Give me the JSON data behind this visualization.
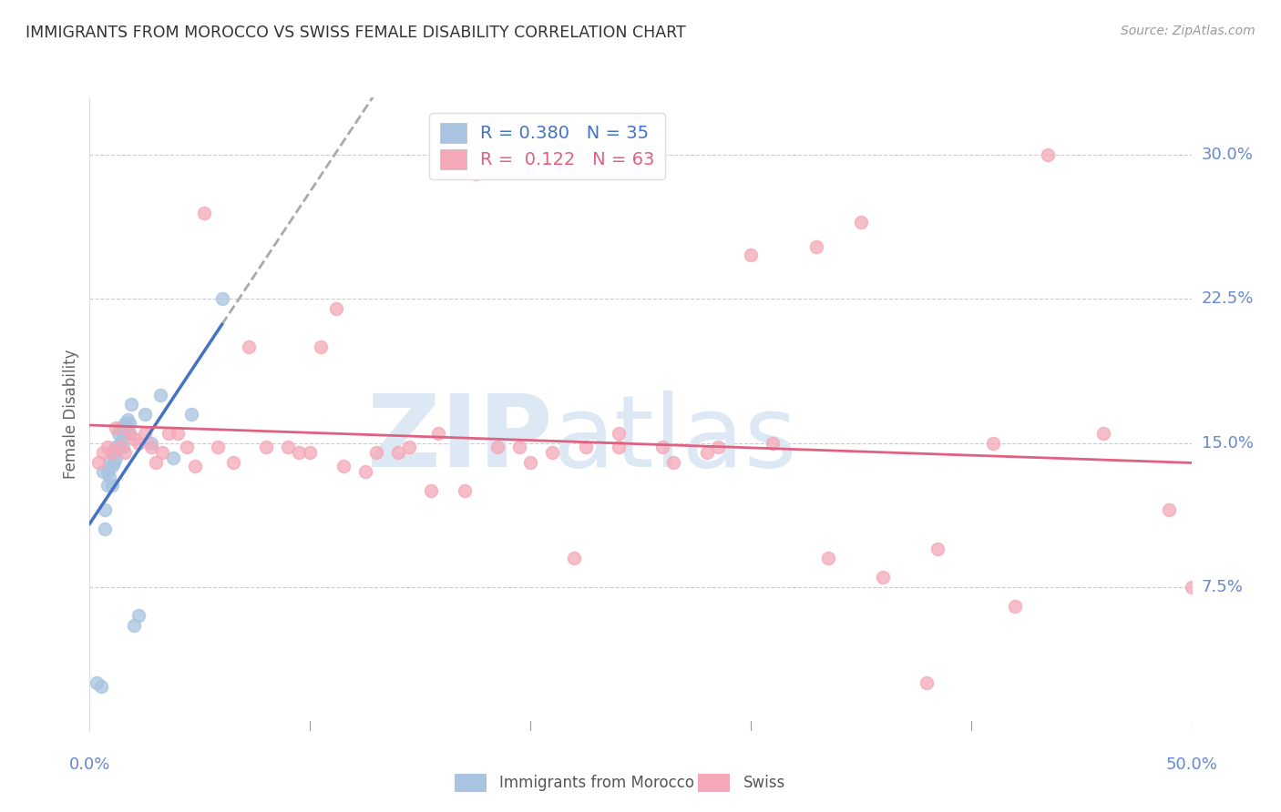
{
  "title": "IMMIGRANTS FROM MOROCCO VS SWISS FEMALE DISABILITY CORRELATION CHART",
  "source": "Source: ZipAtlas.com",
  "ylabel": "Female Disability",
  "ytick_labels": [
    "7.5%",
    "15.0%",
    "22.5%",
    "30.0%"
  ],
  "ytick_values": [
    0.075,
    0.15,
    0.225,
    0.3
  ],
  "xlim": [
    0.0,
    0.5
  ],
  "ylim": [
    0.0,
    0.33
  ],
  "morocco_color": "#a8c4e0",
  "swiss_color": "#f4a8b8",
  "morocco_line_color": "#4472c4",
  "swiss_line_color": "#e06080",
  "dash_line_color": "#aaaaaa",
  "watermark_color": "#dde8f5",
  "background_color": "#ffffff",
  "grid_color": "#cccccc",
  "title_color": "#333333",
  "axis_label_color": "#6688cc",
  "morocco_x": [
    0.003,
    0.005,
    0.006,
    0.007,
    0.007,
    0.008,
    0.008,
    0.009,
    0.009,
    0.01,
    0.01,
    0.011,
    0.011,
    0.012,
    0.012,
    0.013,
    0.013,
    0.014,
    0.014,
    0.015,
    0.015,
    0.016,
    0.016,
    0.017,
    0.018,
    0.018,
    0.019,
    0.02,
    0.022,
    0.025,
    0.028,
    0.032,
    0.038,
    0.046,
    0.06
  ],
  "morocco_y": [
    0.025,
    0.023,
    0.135,
    0.105,
    0.115,
    0.128,
    0.135,
    0.14,
    0.132,
    0.138,
    0.128,
    0.145,
    0.14,
    0.148,
    0.142,
    0.148,
    0.155,
    0.15,
    0.158,
    0.155,
    0.148,
    0.16,
    0.155,
    0.162,
    0.16,
    0.155,
    0.17,
    0.055,
    0.06,
    0.165,
    0.15,
    0.175,
    0.142,
    0.165,
    0.225
  ],
  "swiss_x": [
    0.004,
    0.006,
    0.008,
    0.01,
    0.012,
    0.014,
    0.016,
    0.018,
    0.02,
    0.022,
    0.025,
    0.028,
    0.03,
    0.033,
    0.036,
    0.04,
    0.044,
    0.048,
    0.052,
    0.058,
    0.065,
    0.072,
    0.08,
    0.09,
    0.1,
    0.112,
    0.125,
    0.14,
    0.155,
    0.17,
    0.185,
    0.2,
    0.22,
    0.24,
    0.265,
    0.285,
    0.31,
    0.335,
    0.36,
    0.385,
    0.41,
    0.435,
    0.46,
    0.49,
    0.5,
    0.38,
    0.42,
    0.35,
    0.33,
    0.3,
    0.28,
    0.26,
    0.24,
    0.225,
    0.21,
    0.195,
    0.175,
    0.158,
    0.145,
    0.13,
    0.115,
    0.105,
    0.095
  ],
  "swiss_y": [
    0.14,
    0.145,
    0.148,
    0.145,
    0.158,
    0.148,
    0.145,
    0.155,
    0.152,
    0.15,
    0.155,
    0.148,
    0.14,
    0.145,
    0.155,
    0.155,
    0.148,
    0.138,
    0.27,
    0.148,
    0.14,
    0.2,
    0.148,
    0.148,
    0.145,
    0.22,
    0.135,
    0.145,
    0.125,
    0.125,
    0.148,
    0.14,
    0.09,
    0.148,
    0.14,
    0.148,
    0.15,
    0.09,
    0.08,
    0.095,
    0.15,
    0.3,
    0.155,
    0.115,
    0.075,
    0.025,
    0.065,
    0.265,
    0.252,
    0.248,
    0.145,
    0.148,
    0.155,
    0.148,
    0.145,
    0.148,
    0.29,
    0.155,
    0.148,
    0.145,
    0.138,
    0.2,
    0.145
  ]
}
